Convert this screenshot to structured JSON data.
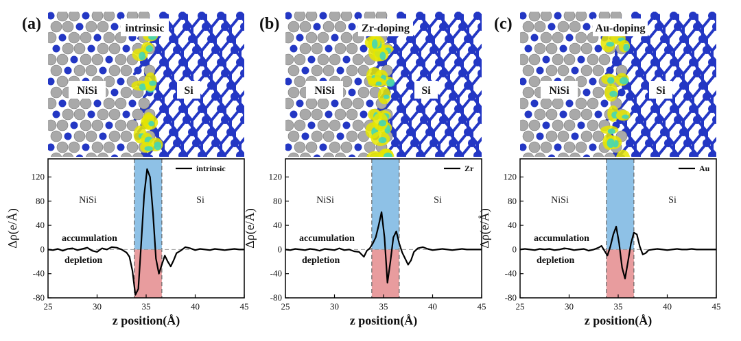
{
  "panels": [
    {
      "letter": "(a)",
      "structure": {
        "title": "intrinsic",
        "left_label": "NiSi",
        "right_label": "Si"
      },
      "chart_data": {
        "type": "line",
        "legend": "intrinsic",
        "ylabel": "Δρ(e/Å)",
        "xlabel": "z position(Å)",
        "xlim": [
          25,
          45
        ],
        "ylim": [
          -80,
          150
        ],
        "xticks": [
          "25",
          "30",
          "35",
          "40",
          "45"
        ],
        "yticks": [
          "-80",
          "-40",
          "0",
          "40",
          "80",
          "120"
        ],
        "left_region": "NiSi",
        "right_region": "Si",
        "above_zero_label": "accumulation",
        "below_zero_label": "depletion",
        "interface_band": [
          33.8,
          36.6
        ],
        "x": [
          25,
          25.5,
          26,
          26.5,
          27,
          27.5,
          28,
          28.5,
          29,
          29.5,
          30,
          30.5,
          31,
          31.5,
          32,
          32.5,
          33,
          33.3,
          33.6,
          33.9,
          34.2,
          34.5,
          34.8,
          35.1,
          35.4,
          35.7,
          36.0,
          36.3,
          36.6,
          36.9,
          37.2,
          37.5,
          37.8,
          38.1,
          38.5,
          39,
          39.5,
          40,
          40.5,
          41,
          41.5,
          42,
          42.5,
          43,
          43.5,
          44,
          44.5,
          45
        ],
        "y": [
          0,
          -1,
          1,
          -2,
          1,
          2,
          -1,
          1,
          3,
          -2,
          -4,
          2,
          0,
          4,
          3,
          0,
          -5,
          -12,
          -35,
          -75,
          -65,
          10,
          90,
          133,
          120,
          60,
          -15,
          -40,
          -25,
          -10,
          -20,
          -28,
          -18,
          -6,
          -2,
          4,
          2,
          -1,
          1,
          0,
          -1,
          1,
          0,
          -1,
          0,
          1,
          0,
          0
        ]
      }
    },
    {
      "letter": "(b)",
      "structure": {
        "title": "Zr-doping",
        "left_label": "NiSi",
        "right_label": "Si"
      },
      "chart_data": {
        "type": "line",
        "legend": "Zr",
        "ylabel": "Δρ(e/Å)",
        "xlabel": "z position(Å)",
        "xlim": [
          25,
          45
        ],
        "ylim": [
          -80,
          150
        ],
        "xticks": [
          "25",
          "30",
          "35",
          "40",
          "45"
        ],
        "yticks": [
          "-80",
          "-40",
          "0",
          "40",
          "80",
          "120"
        ],
        "left_region": "NiSi",
        "right_region": "Si",
        "above_zero_label": "accumulation",
        "below_zero_label": "depletion",
        "interface_band": [
          33.8,
          36.6
        ],
        "x": [
          25,
          25.5,
          26,
          26.5,
          27,
          27.5,
          28,
          28.5,
          29,
          29.5,
          30,
          30.5,
          31,
          31.5,
          32,
          32.5,
          33,
          33.3,
          33.6,
          33.9,
          34.2,
          34.5,
          34.8,
          35.1,
          35.4,
          35.7,
          36.0,
          36.3,
          36.6,
          36.9,
          37.2,
          37.5,
          37.8,
          38.1,
          38.5,
          39,
          39.5,
          40,
          40.5,
          41,
          41.5,
          42,
          42.5,
          43,
          43.5,
          44,
          44.5,
          45
        ],
        "y": [
          0,
          -1,
          1,
          0,
          -1,
          1,
          0,
          -2,
          1,
          0,
          -1,
          2,
          -1,
          0,
          -3,
          -4,
          -12,
          -2,
          2,
          10,
          20,
          40,
          62,
          20,
          -55,
          -20,
          20,
          30,
          10,
          -5,
          -15,
          -25,
          -18,
          -4,
          2,
          4,
          1,
          -1,
          0,
          1,
          0,
          -1,
          0,
          1,
          0,
          0,
          0,
          0
        ]
      }
    },
    {
      "letter": "(c)",
      "structure": {
        "title": "Au-doping",
        "left_label": "NiSi",
        "right_label": "Si"
      },
      "chart_data": {
        "type": "line",
        "legend": "Au",
        "ylabel": "Δρ(e/Å)",
        "xlabel": "z position(Å)",
        "xlim": [
          25,
          45
        ],
        "ylim": [
          -80,
          150
        ],
        "xticks": [
          "25",
          "30",
          "35",
          "40",
          "45"
        ],
        "yticks": [
          "-80",
          "-40",
          "0",
          "40",
          "80",
          "120"
        ],
        "left_region": "NiSi",
        "right_region": "Si",
        "above_zero_label": "accumulation",
        "below_zero_label": "depletion",
        "interface_band": [
          33.8,
          36.6
        ],
        "x": [
          25,
          25.5,
          26,
          26.5,
          27,
          27.5,
          28,
          28.5,
          29,
          29.5,
          30,
          30.5,
          31,
          31.5,
          32,
          32.5,
          33,
          33.3,
          33.6,
          33.9,
          34.2,
          34.5,
          34.8,
          35.1,
          35.4,
          35.7,
          36.0,
          36.3,
          36.6,
          36.9,
          37.2,
          37.5,
          37.8,
          38.1,
          38.5,
          39,
          39.5,
          40,
          40.5,
          41,
          41.5,
          42,
          42.5,
          43,
          43.5,
          44,
          44.5,
          45
        ],
        "y": [
          0,
          1,
          0,
          -1,
          1,
          0,
          1,
          -1,
          0,
          2,
          1,
          -1,
          0,
          1,
          -2,
          0,
          3,
          6,
          -2,
          -10,
          5,
          25,
          38,
          10,
          -30,
          -48,
          -20,
          10,
          28,
          25,
          5,
          -8,
          -6,
          -1,
          0,
          1,
          0,
          -1,
          0,
          1,
          0,
          0,
          1,
          0,
          0,
          0,
          0,
          0
        ]
      }
    }
  ],
  "colors": {
    "atom_blue": "#2337c4",
    "atom_gray": "#a9a9a9",
    "iso_yellow": "#e6e600",
    "iso_cyan": "#39d6c0",
    "band_blue": "#8ec1e6",
    "band_red": "#e89c9e"
  }
}
